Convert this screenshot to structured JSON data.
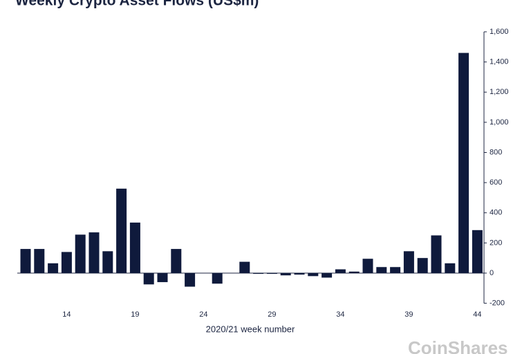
{
  "chart_data": {
    "type": "bar",
    "title": "Weekly Crypto Asset Flows (US$m)",
    "x_label": "2020/21 week number",
    "watermark": "CoinShares",
    "categories": [
      null,
      null,
      null,
      "14",
      null,
      null,
      null,
      null,
      "19",
      null,
      null,
      null,
      null,
      "24",
      null,
      null,
      null,
      null,
      "29",
      null,
      null,
      null,
      null,
      "34",
      null,
      null,
      null,
      null,
      "39",
      null,
      null,
      null,
      null,
      "44"
    ],
    "values": [
      160,
      160,
      65,
      140,
      255,
      270,
      145,
      560,
      335,
      -75,
      -60,
      160,
      -90,
      0,
      -70,
      0,
      75,
      -5,
      -5,
      -15,
      -10,
      -20,
      -30,
      25,
      10,
      95,
      40,
      40,
      145,
      100,
      250,
      65,
      1460,
      285
    ],
    "color": "#0f1a3c",
    "ylim": [
      -200,
      1600
    ],
    "yticks": [
      -200,
      0,
      200,
      400,
      600,
      800,
      {
        "value": 1000,
        "label": "1,000"
      },
      {
        "value": 1200,
        "label": "1,200"
      },
      {
        "value": 1400,
        "label": "1,400"
      },
      {
        "value": 1600,
        "label": "1,600"
      }
    ],
    "grid": false
  }
}
